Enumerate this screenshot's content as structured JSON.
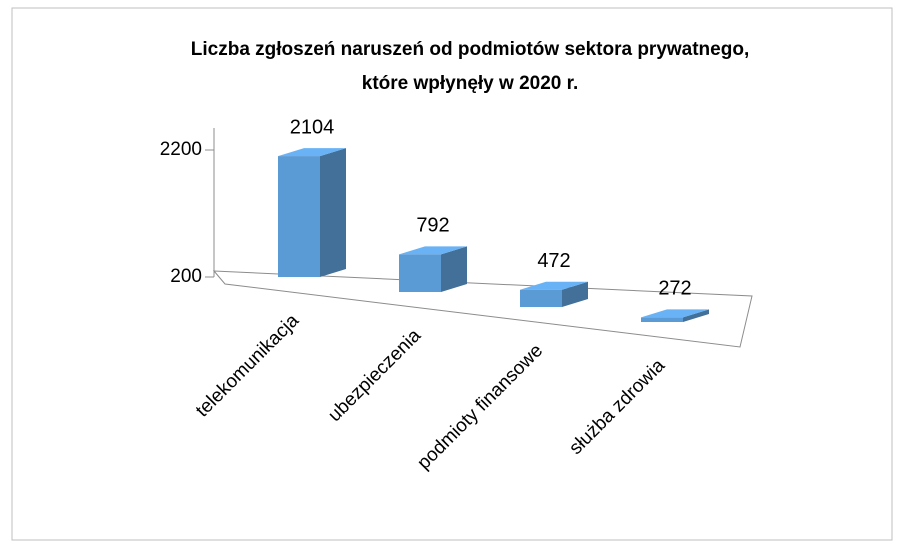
{
  "chart_data": {
    "type": "bar3d",
    "title": [
      "Liczba zgłoszeń naruszeń od podmiotów sektora prywatnego,",
      "które wpłynęły w 2020 r."
    ],
    "categories": [
      "telekomunikacja",
      "ubezpieczenia",
      "podmioty finansowe",
      "służba zdrowia"
    ],
    "values": [
      2104,
      792,
      472,
      272
    ],
    "color": "#5b9bd5",
    "ylim": [
      200,
      2200
    ],
    "yticks": [
      200,
      2200
    ]
  }
}
